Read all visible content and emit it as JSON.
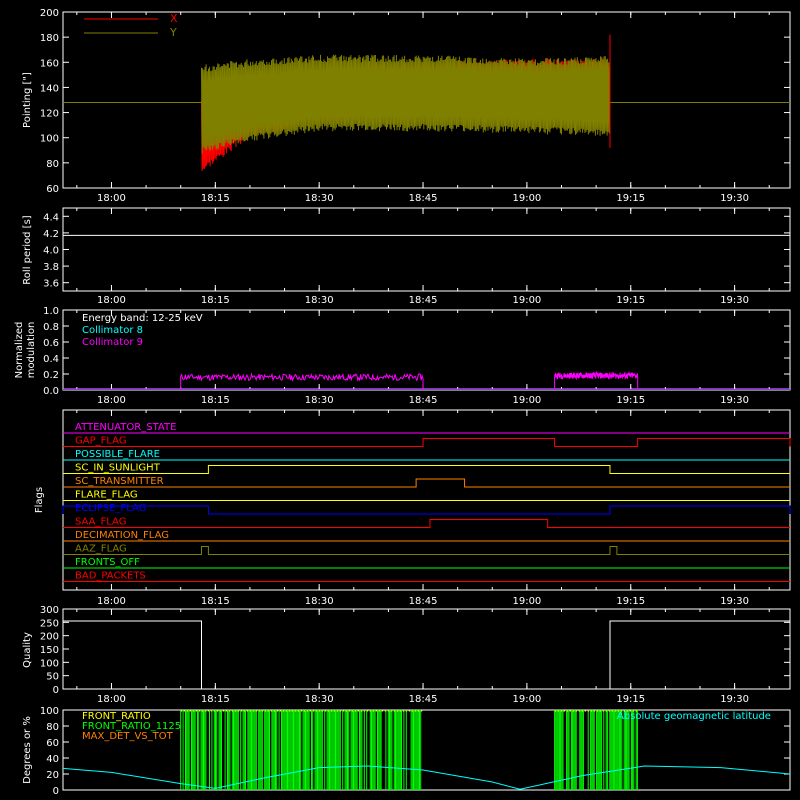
{
  "colors": {
    "background": "#000000",
    "axes": "#ffffff",
    "x_series": "#ff0000",
    "y_series": "#808000",
    "collimator8": "#00ffff",
    "collimator9": "#ff00ff",
    "roll": "#ffffff",
    "quality": "#ffffff",
    "front_ratio": "#ffff00",
    "front_ratio_1125": "#00ff00",
    "max_det_vs_tot": "#ff8000",
    "geomag": "#00ffff"
  },
  "time_axis": {
    "start": "17:53",
    "end": "19:38",
    "tick_labels": [
      "18:00",
      "18:15",
      "18:30",
      "18:45",
      "19:00",
      "19:15",
      "19:30"
    ],
    "tick_values": [
      "18:00",
      "18:15",
      "18:30",
      "18:45",
      "19:00",
      "19:15",
      "19:30"
    ]
  },
  "chart_data": [
    {
      "type": "line",
      "panel": "pointing",
      "ylabel": "Pointing [\"]",
      "ylim": [
        60,
        200
      ],
      "yticks": [
        60,
        80,
        100,
        120,
        140,
        160,
        180,
        200
      ],
      "legend": {
        "placement": "top-left",
        "entries": [
          "X",
          "Y"
        ]
      },
      "series": [
        {
          "name": "X",
          "baseline": 128,
          "active_start": "18:13",
          "active_end": "19:12",
          "envelope_upper": [
            {
              "t": "18:13",
              "v": 130
            },
            {
              "t": "18:20",
              "v": 148
            },
            {
              "t": "18:30",
              "v": 153
            },
            {
              "t": "18:45",
              "v": 157
            },
            {
              "t": "19:00",
              "v": 160
            },
            {
              "t": "19:12",
              "v": 160
            }
          ],
          "envelope_lower": [
            {
              "t": "18:13",
              "v": 75
            },
            {
              "t": "18:20",
              "v": 103
            },
            {
              "t": "18:30",
              "v": 115
            },
            {
              "t": "18:45",
              "v": 119
            },
            {
              "t": "19:00",
              "v": 117
            },
            {
              "t": "19:12",
              "v": 115
            }
          ]
        },
        {
          "name": "Y",
          "baseline": 128,
          "active_start": "18:13",
          "active_end": "19:12",
          "envelope_upper": [
            {
              "t": "18:13",
              "v": 155
            },
            {
              "t": "18:20",
              "v": 160
            },
            {
              "t": "18:30",
              "v": 163
            },
            {
              "t": "18:45",
              "v": 163
            },
            {
              "t": "19:00",
              "v": 160
            },
            {
              "t": "19:12",
              "v": 162
            }
          ],
          "envelope_lower": [
            {
              "t": "18:13",
              "v": 90
            },
            {
              "t": "18:20",
              "v": 100
            },
            {
              "t": "18:30",
              "v": 108
            },
            {
              "t": "18:45",
              "v": 108
            },
            {
              "t": "19:00",
              "v": 106
            },
            {
              "t": "19:12",
              "v": 104
            }
          ]
        }
      ]
    },
    {
      "type": "line",
      "panel": "roll",
      "ylabel": "Roll period [s]",
      "ylim": [
        3.5,
        4.5
      ],
      "yticks": [
        3.6,
        3.8,
        4.0,
        4.2,
        4.4
      ],
      "series": [
        {
          "points": [
            {
              "t": "17:53",
              "v": 4.17
            },
            {
              "t": "19:38",
              "v": 4.17
            }
          ]
        }
      ]
    },
    {
      "type": "line",
      "panel": "modulation",
      "ylabel": "Normalized modulation",
      "ylim": [
        0.0,
        1.0
      ],
      "yticks": [
        0.0,
        0.2,
        0.4,
        0.6,
        0.8,
        1.0
      ],
      "annotation": "Energy band: 12-25 keV",
      "legend": {
        "placement": "top-left",
        "entries": [
          "Collimator 8",
          "Collimator 9"
        ]
      },
      "series": [
        {
          "name": "Collimator 8",
          "points": [
            {
              "t": "17:53",
              "v": 0.0
            },
            {
              "t": "19:38",
              "v": 0.0
            }
          ]
        },
        {
          "name": "Collimator 9",
          "segments": [
            {
              "start": "18:10",
              "end": "18:45",
              "level": 0.16
            },
            {
              "start": "19:04",
              "end": "19:16",
              "level": 0.18
            }
          ]
        }
      ]
    },
    {
      "type": "line",
      "panel": "flags",
      "ylabel": "Flags",
      "series": [
        {
          "name": "ATTENUATOR_STATE",
          "color": "#ff00ff",
          "steps": []
        },
        {
          "name": "GAP_FLAG",
          "color": "#ff0000",
          "steps": [
            {
              "start": "18:45",
              "end": "19:04"
            },
            {
              "start": "19:16",
              "end": "19:38"
            }
          ]
        },
        {
          "name": "POSSIBLE_FLARE",
          "color": "#00ffff",
          "steps": []
        },
        {
          "name": "SC_IN_SUNLIGHT",
          "color": "#ffff00",
          "steps": [
            {
              "start": "18:14",
              "end": "19:12"
            }
          ]
        },
        {
          "name": "SC_TRANSMITTER",
          "color": "#ff8000",
          "steps": [
            {
              "start": "18:44",
              "end": "18:51"
            }
          ]
        },
        {
          "name": "FLARE_FLAG",
          "color": "#ffff00",
          "steps": []
        },
        {
          "name": "ECLIPSE_FLAG",
          "color": "#0000ff",
          "steps": [
            {
              "start": "17:53",
              "end": "18:14"
            },
            {
              "start": "19:12",
              "end": "19:38"
            }
          ]
        },
        {
          "name": "SAA_FLAG",
          "color": "#ff0000",
          "steps": [
            {
              "start": "18:46",
              "end": "19:03"
            }
          ]
        },
        {
          "name": "DECIMATION_FLAG",
          "color": "#ff8000",
          "steps": []
        },
        {
          "name": "AAZ_FLAG",
          "color": "#808000",
          "steps": [
            {
              "start": "18:13",
              "end": "18:14"
            },
            {
              "start": "19:12",
              "end": "19:13"
            }
          ]
        },
        {
          "name": "FRONTS_OFF",
          "color": "#00ff00",
          "steps": []
        },
        {
          "name": "BAD_PACKETS",
          "color": "#ff0000",
          "steps": []
        }
      ]
    },
    {
      "type": "line",
      "panel": "quality",
      "ylabel": "Quality",
      "ylim": [
        0,
        300
      ],
      "yticks": [
        0,
        50,
        100,
        150,
        200,
        250,
        300
      ],
      "series": [
        {
          "points": [
            {
              "t": "17:53",
              "v": 255
            },
            {
              "t": "18:13",
              "v": 255
            },
            {
              "t": "18:13",
              "v": 0
            },
            {
              "t": "19:12",
              "v": 0
            },
            {
              "t": "19:12",
              "v": 255
            },
            {
              "t": "19:38",
              "v": 255
            }
          ]
        }
      ]
    },
    {
      "type": "line",
      "panel": "geomag",
      "ylabel": "Degrees or %",
      "ylim": [
        0,
        100
      ],
      "yticks": [
        0,
        20,
        40,
        60,
        80,
        100
      ],
      "legend": {
        "placement": "top-left",
        "entries": [
          "FRONT_RATIO",
          "FRONT_RATIO_1125",
          "MAX_DET_VS_TOT"
        ]
      },
      "annotation": "Absolute geomagnetic latitude",
      "series": [
        {
          "name": "Absolute geomagnetic latitude",
          "points": [
            {
              "t": "17:53",
              "v": 27
            },
            {
              "t": "18:00",
              "v": 22
            },
            {
              "t": "18:10",
              "v": 8
            },
            {
              "t": "18:15",
              "v": 2
            },
            {
              "t": "18:22",
              "v": 15
            },
            {
              "t": "18:30",
              "v": 28
            },
            {
              "t": "18:37",
              "v": 30
            },
            {
              "t": "18:45",
              "v": 25
            },
            {
              "t": "18:55",
              "v": 10
            },
            {
              "t": "18:59",
              "v": 1
            },
            {
              "t": "19:08",
              "v": 18
            },
            {
              "t": "19:17",
              "v": 30
            },
            {
              "t": "19:28",
              "v": 28
            },
            {
              "t": "19:38",
              "v": 20
            }
          ]
        },
        {
          "name": "FRONT_RATIO_1125",
          "bands": [
            {
              "start": "18:10",
              "end": "18:45"
            },
            {
              "start": "19:04",
              "end": "19:16"
            }
          ],
          "level": 100
        }
      ]
    }
  ]
}
